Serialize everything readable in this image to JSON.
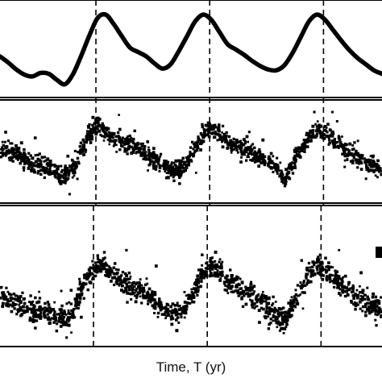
{
  "chart_data": {
    "type": "line",
    "title": "",
    "xlabel": "Time, T (yr)",
    "grid": false,
    "legend": "none",
    "reference_lines": {
      "style": "dashed",
      "panels_1_2": [
        0.118,
        0.258,
        0.398
      ],
      "panel_3": [
        0.115,
        0.255,
        0.395
      ]
    },
    "panels": [
      {
        "type": "line",
        "x": [
          0.0,
          0.01,
          0.02,
          0.03,
          0.04,
          0.05,
          0.06,
          0.07,
          0.08,
          0.09,
          0.1,
          0.11,
          0.12,
          0.13,
          0.14,
          0.15,
          0.16,
          0.17,
          0.18,
          0.19,
          0.2,
          0.21,
          0.22,
          0.23,
          0.24,
          0.25,
          0.26,
          0.27,
          0.28,
          0.29,
          0.3,
          0.31,
          0.32,
          0.33,
          0.34,
          0.35,
          0.36,
          0.37,
          0.38,
          0.39,
          0.4,
          0.41,
          0.42,
          0.43,
          0.44,
          0.45,
          0.46,
          0.47
        ],
        "y": [
          0.38,
          0.31,
          0.23,
          0.17,
          0.15,
          0.19,
          0.18,
          0.11,
          0.06,
          0.18,
          0.39,
          0.62,
          0.82,
          0.86,
          0.75,
          0.61,
          0.48,
          0.43,
          0.38,
          0.3,
          0.24,
          0.29,
          0.44,
          0.61,
          0.78,
          0.86,
          0.8,
          0.66,
          0.52,
          0.46,
          0.4,
          0.33,
          0.27,
          0.23,
          0.22,
          0.28,
          0.42,
          0.6,
          0.78,
          0.86,
          0.8,
          0.68,
          0.56,
          0.45,
          0.36,
          0.29,
          0.22,
          0.18
        ],
        "ylim": [
          0,
          1
        ]
      },
      {
        "type": "scatter",
        "trend_x": [
          0.0,
          0.02,
          0.04,
          0.06,
          0.08,
          0.09,
          0.1,
          0.11,
          0.12,
          0.13,
          0.14,
          0.16,
          0.18,
          0.2,
          0.22,
          0.23,
          0.24,
          0.25,
          0.26,
          0.27,
          0.28,
          0.3,
          0.32,
          0.34,
          0.35,
          0.36,
          0.37,
          0.38,
          0.39,
          0.4,
          0.42,
          0.44,
          0.46,
          0.47
        ],
        "trend_y": [
          0.54,
          0.5,
          0.36,
          0.32,
          0.22,
          0.31,
          0.54,
          0.72,
          0.84,
          0.77,
          0.68,
          0.59,
          0.49,
          0.34,
          0.28,
          0.38,
          0.55,
          0.71,
          0.8,
          0.74,
          0.64,
          0.55,
          0.45,
          0.34,
          0.17,
          0.36,
          0.53,
          0.66,
          0.8,
          0.72,
          0.58,
          0.45,
          0.36,
          0.3
        ],
        "noise": 0.1,
        "points_per_step": 55,
        "ylim": [
          0,
          1
        ]
      },
      {
        "type": "scatter",
        "trend_x": [
          0.0,
          0.02,
          0.04,
          0.06,
          0.08,
          0.09,
          0.1,
          0.11,
          0.12,
          0.13,
          0.14,
          0.16,
          0.18,
          0.2,
          0.22,
          0.23,
          0.24,
          0.25,
          0.26,
          0.27,
          0.28,
          0.3,
          0.32,
          0.34,
          0.35,
          0.36,
          0.37,
          0.38,
          0.39,
          0.4,
          0.42,
          0.44,
          0.46,
          0.47
        ],
        "trend_y": [
          0.44,
          0.37,
          0.29,
          0.26,
          0.19,
          0.29,
          0.5,
          0.66,
          0.78,
          0.73,
          0.64,
          0.55,
          0.45,
          0.3,
          0.25,
          0.37,
          0.54,
          0.68,
          0.77,
          0.71,
          0.6,
          0.5,
          0.38,
          0.26,
          0.16,
          0.35,
          0.51,
          0.66,
          0.76,
          0.7,
          0.55,
          0.41,
          0.33,
          0.28
        ],
        "noise": 0.1,
        "points_per_step": 55,
        "ylim": [
          0,
          1
        ]
      }
    ]
  }
}
